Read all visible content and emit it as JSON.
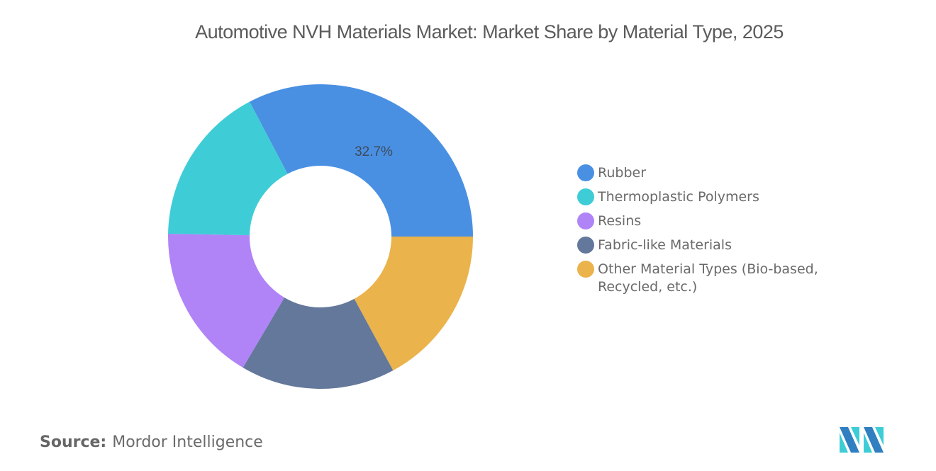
{
  "title": "Automotive NVH Materials Market: Market Share by Material Type, 2025",
  "chart_data": {
    "type": "pie",
    "subtype": "donut",
    "title": "Automotive NVH Materials Market: Market Share by Material Type, 2025",
    "categories": [
      "Rubber",
      "Thermoplastic Polymers",
      "Resins",
      "Fabric-like Materials",
      "Other Material Types (Bio-based, Recycled, etc.)"
    ],
    "values": [
      32.7,
      17.0,
      16.8,
      16.4,
      17.1
    ],
    "colors": [
      "#4a90e2",
      "#3ecdd6",
      "#b084f7",
      "#64789b",
      "#eab34b"
    ],
    "data_labels": [
      {
        "category": "Rubber",
        "text": "32.7%"
      }
    ],
    "legend_position": "right",
    "unit": "%"
  },
  "legend": {
    "items": [
      {
        "label": "Rubber",
        "color": "#4a90e2"
      },
      {
        "label": "Thermoplastic Polymers",
        "color": "#3ecdd6"
      },
      {
        "label": "Resins",
        "color": "#b084f7"
      },
      {
        "label": "Fabric-like Materials",
        "color": "#64789b"
      },
      {
        "label": "Other Material Types (Bio-based, Recycled, etc.)",
        "color": "#eab34b"
      }
    ]
  },
  "source": {
    "label": "Source:",
    "value": "Mordor Intelligence"
  },
  "logo": {
    "icon": "mordor-intelligence-logo"
  }
}
